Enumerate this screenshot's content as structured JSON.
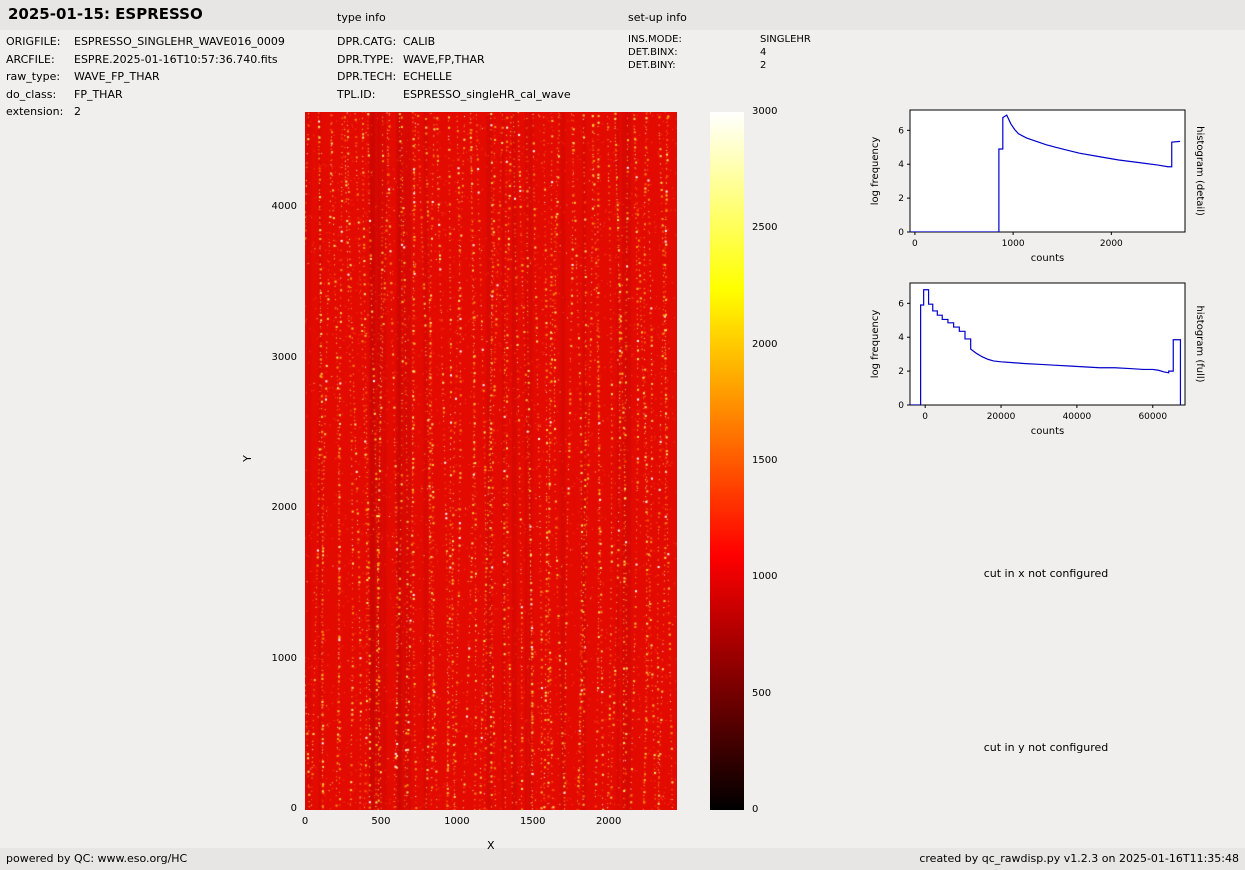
{
  "page": {
    "title": "2025-01-15: ESPRESSO",
    "footer_left": "powered by QC: www.eso.org/HC",
    "footer_right": "created by qc_rawdisp.py v1.2.3 on 2025-01-16T11:35:48"
  },
  "file_info": {
    "rows": [
      {
        "label": "ORIGFILE:",
        "value": "ESPRESSO_SINGLEHR_WAVE016_0009"
      },
      {
        "label": "ARCFILE:",
        "value": "ESPRE.2025-01-16T10:57:36.740.fits"
      },
      {
        "label": "raw_type:",
        "value": "WAVE_FP_THAR"
      },
      {
        "label": "do_class:",
        "value": "FP_THAR"
      },
      {
        "label": "extension:",
        "value": "2"
      }
    ]
  },
  "type_info": {
    "heading": "type info",
    "rows": [
      {
        "label": "DPR.CATG:",
        "value": "CALIB"
      },
      {
        "label": "DPR.TYPE:",
        "value": "WAVE,FP,THAR"
      },
      {
        "label": "DPR.TECH:",
        "value": "ECHELLE"
      },
      {
        "label": "TPL.ID:",
        "value": "ESPRESSO_singleHR_cal_wave"
      }
    ]
  },
  "setup_info": {
    "heading": "set-up info",
    "rows": [
      {
        "label": "INS.MODE:",
        "value": "SINGLEHR"
      },
      {
        "label": "DET.BINX:",
        "value": "4"
      },
      {
        "label": "DET.BINY:",
        "value": "2"
      }
    ]
  },
  "messages": {
    "cut_x": "cut in x not configured",
    "cut_y": "cut in y not configured"
  },
  "chart_data": [
    {
      "type": "heatmap",
      "name": "raw frame image",
      "xlabel": "X",
      "ylabel": "Y",
      "xlim": [
        0,
        2450
      ],
      "ylim": [
        0,
        4640
      ],
      "xticks": [
        0,
        500,
        1000,
        1500,
        2000
      ],
      "yticks": [
        0,
        1000,
        2000,
        3000,
        4000
      ],
      "base_color": "#e30b00",
      "speck_colors": [
        "#ffffff",
        "#ffee66",
        "#ffcc33",
        "#ff9900",
        "#ff5500"
      ],
      "colorbar": {
        "min": 0,
        "max": 3000,
        "ticks": [
          0,
          500,
          1000,
          1500,
          2000,
          2500,
          3000
        ],
        "colormap": "hot",
        "stops": [
          {
            "pos": 0,
            "color": "#000000"
          },
          {
            "pos": 0.365,
            "color": "#ff0000"
          },
          {
            "pos": 0.746,
            "color": "#ffff00"
          },
          {
            "pos": 1,
            "color": "#ffffff"
          }
        ]
      },
      "description": "ESPRESSO raw wavelength-calibration frame (WAVE,FP,THAR): uniform red background near 1000 counts with dense vertical dotted columns of brighter FP/ThAr emission-line spots"
    },
    {
      "type": "line",
      "name": "histogram (detail)",
      "xlabel": "counts",
      "ylabel": "log frequency",
      "xlim": [
        -50,
        2750
      ],
      "ylim": [
        0,
        7.2
      ],
      "xticks": [
        0,
        1000,
        2000
      ],
      "yticks": [
        0,
        2,
        4,
        6
      ],
      "color": "#0000cc",
      "x": [
        -50,
        830,
        855,
        855,
        895,
        895,
        935,
        975,
        1015,
        1055,
        1135,
        1235,
        1335,
        1435,
        1535,
        1675,
        1875,
        2075,
        2275,
        2475,
        2575,
        2615,
        2615,
        2700
      ],
      "y": [
        0,
        0,
        0,
        4.9,
        4.9,
        6.75,
        6.9,
        6.4,
        6.05,
        5.8,
        5.55,
        5.35,
        5.15,
        5.0,
        4.85,
        4.65,
        4.45,
        4.25,
        4.1,
        3.95,
        3.85,
        3.85,
        5.3,
        5.35
      ]
    },
    {
      "type": "line",
      "name": "histogram (full)",
      "xlabel": "counts",
      "ylabel": "log frequency",
      "xlim": [
        -4000,
        68500
      ],
      "ylim": [
        0,
        7.2
      ],
      "xticks": [
        0,
        20000,
        40000,
        60000
      ],
      "yticks": [
        0,
        2,
        4,
        6
      ],
      "color": "#0000cc",
      "x": [
        -4000,
        -1200,
        -1200,
        -400,
        -400,
        900,
        900,
        2000,
        2000,
        3200,
        3200,
        4500,
        4500,
        6000,
        6000,
        7500,
        7500,
        9000,
        9000,
        10500,
        10500,
        12000,
        12000,
        13500,
        15000,
        16500,
        18000,
        20000,
        23000,
        26000,
        30000,
        34000,
        38000,
        42000,
        46000,
        50000,
        54000,
        57500,
        60000,
        61500,
        63000,
        64200,
        64200,
        65400,
        65400,
        67300,
        67300
      ],
      "y": [
        0,
        0,
        5.9,
        5.9,
        6.8,
        6.8,
        5.95,
        5.95,
        5.55,
        5.55,
        5.3,
        5.3,
        5.05,
        5.05,
        4.85,
        4.85,
        4.6,
        4.6,
        4.35,
        4.35,
        3.9,
        3.9,
        3.3,
        3.05,
        2.85,
        2.7,
        2.6,
        2.55,
        2.5,
        2.45,
        2.4,
        2.35,
        2.3,
        2.25,
        2.2,
        2.2,
        2.15,
        2.1,
        2.1,
        2.05,
        1.95,
        1.9,
        2.0,
        2.0,
        3.85,
        3.85,
        0
      ]
    }
  ]
}
